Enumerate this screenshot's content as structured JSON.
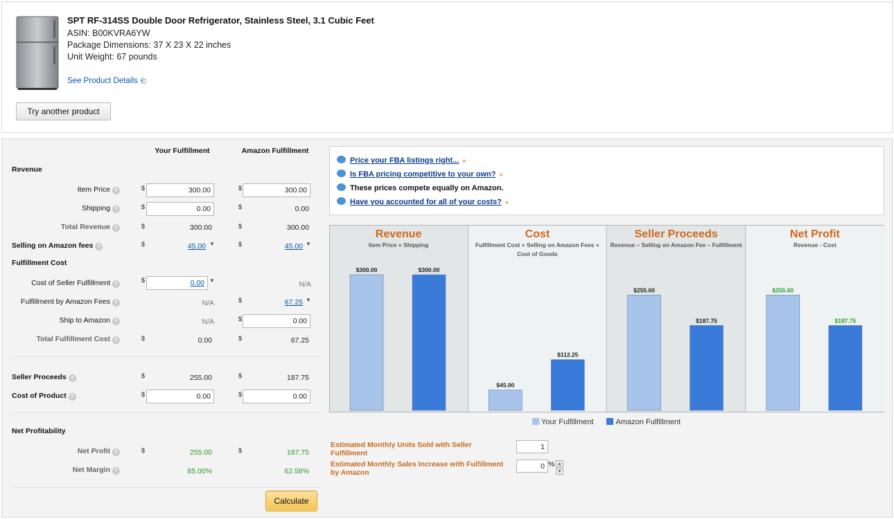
{
  "product": {
    "title": "SPT RF-314SS Double Door Refrigerator, Stainless Steel, 3.1 Cubic Feet",
    "asin": "ASIN: B00KVRA6YW",
    "dimensions": "Package Dimensions: 37 X 23 X 22 inches",
    "weight": "Unit Weight: 67 pounds",
    "see_details": "See Product Details",
    "try_another": "Try another product"
  },
  "calculator": {
    "col_your": "Your Fulfillment",
    "col_amazon": "Amazon Fulfillment",
    "currency": "$",
    "revenue_header": "Revenue",
    "item_price_label": "Item Price",
    "item_price_your": "300.00",
    "item_price_amazon": "300.00",
    "shipping_label": "Shipping",
    "shipping_your": "0.00",
    "shipping_amazon": "0.00",
    "total_revenue_label": "Total Revenue",
    "total_revenue_your": "300.00",
    "total_revenue_amazon": "300.00",
    "selling_fees_label": "Selling on Amazon fees",
    "selling_fees_your": "45.00",
    "selling_fees_amazon": "45.00",
    "fulfillment_header": "Fulfillment Cost",
    "cost_seller_label": "Cost of Seller Fulfillment",
    "cost_seller_your": "0.00",
    "cost_seller_amazon": "N/A",
    "fba_fees_label": "Fulfillment by Amazon Fees",
    "fba_fees_your": "N/A",
    "fba_fees_amazon": "67.25",
    "ship_amazon_label": "Ship to Amazon",
    "ship_amazon_your": "N/A",
    "ship_amazon_amazon": "0.00",
    "total_fulfillment_label": "Total Fulfillment Cost",
    "total_fulfillment_your": "0.00",
    "total_fulfillment_amazon": "67.25",
    "seller_proceeds_label": "Seller Proceeds",
    "seller_proceeds_your": "255.00",
    "seller_proceeds_amazon": "187.75",
    "cost_product_label": "Cost of Product",
    "cost_product_your": "0.00",
    "cost_product_amazon": "0.00",
    "net_header": "Net Profitability",
    "net_profit_label": "Net Profit",
    "net_profit_your": "255.00",
    "net_profit_amazon": "187.75",
    "net_margin_label": "Net Margin",
    "net_margin_your": "85.00%",
    "net_margin_amazon": "62.58%",
    "calculate": "Calculate"
  },
  "tips": {
    "tip1": "Price your FBA listings right...",
    "tip2": "Is FBA pricing competitive to your own?",
    "tip3": "These prices compete equally on Amazon.",
    "tip4": "Have you accounted for all of your costs?"
  },
  "estimates": {
    "units_label": "Estimated Monthly Units Sold with Seller Fulfillment",
    "units_value": "1",
    "increase_label": "Estimated Monthly Sales Increase with Fulfillment by Amazon",
    "increase_value": "0",
    "percent": "%"
  },
  "colors": {
    "your": "#a9c4ea",
    "amazon": "#3a7ad9",
    "title_orange": "#d2671c",
    "green_label": "#2a9a2a"
  },
  "chart_data": {
    "type": "bar",
    "ylim": [
      0,
      300
    ],
    "legend": [
      "Your Fulfillment",
      "Amazon Fulfillment"
    ],
    "groups": [
      {
        "title": "Revenue",
        "subtitle": "Item Price + Shipping",
        "your": 300,
        "amazon": 300,
        "your_label": "$300.00",
        "amazon_label": "$300.00",
        "bg": "#e2e6e6",
        "green": false
      },
      {
        "title": "Cost",
        "subtitle": "Fulfillment Cost + Selling on Amazon Fees + Cost of Goods",
        "your": 45,
        "amazon": 112.25,
        "your_label": "$45.00",
        "amazon_label": "$112.25",
        "bg": "#eef2f3",
        "green": false
      },
      {
        "title": "Seller Proceeds",
        "subtitle": "Revenue – Selling on Amazon Fee – Fulfillment",
        "your": 255,
        "amazon": 187.75,
        "your_label": "$255.00",
        "amazon_label": "$187.75",
        "bg": "#e2e6e6",
        "green": false
      },
      {
        "title": "Net Profit",
        "subtitle": "Revenue - Cost",
        "your": 255,
        "amazon": 187.75,
        "your_label": "$255.00",
        "amazon_label": "$187.75",
        "bg": "#eef2f3",
        "green": true
      }
    ]
  }
}
